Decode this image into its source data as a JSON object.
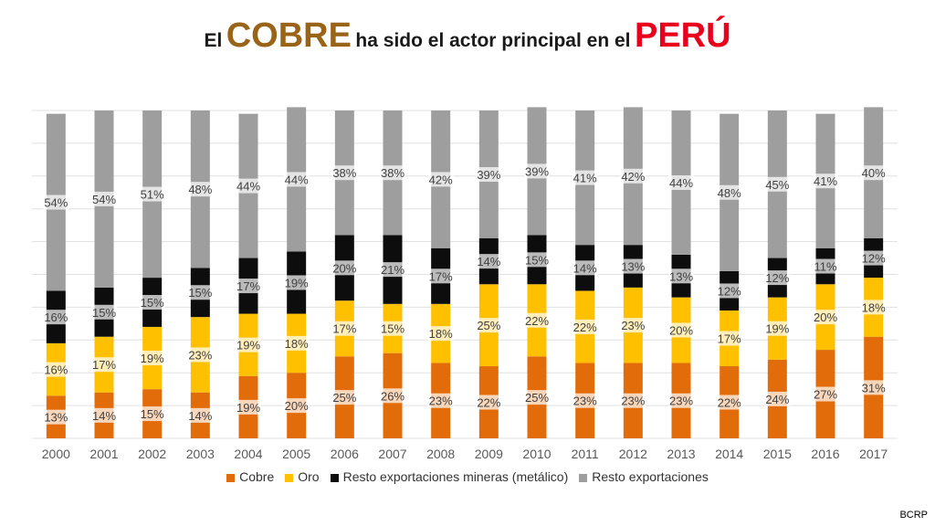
{
  "title": {
    "part1": "El",
    "part2": "COBRE",
    "part3": "ha sido el actor principal en el",
    "part4": "PERÚ"
  },
  "source": "BCRP",
  "chart_data": {
    "type": "bar",
    "stacked": true,
    "percent_stacked": true,
    "categories": [
      "2000",
      "2001",
      "2002",
      "2003",
      "2004",
      "2005",
      "2006",
      "2007",
      "2008",
      "2009",
      "2010",
      "2011",
      "2012",
      "2013",
      "2014",
      "2015",
      "2016",
      "2017"
    ],
    "series": [
      {
        "name": "Cobre",
        "color": "#e36c0a",
        "values": [
          13,
          14,
          15,
          14,
          19,
          20,
          25,
          26,
          23,
          22,
          25,
          23,
          23,
          23,
          22,
          24,
          27,
          31
        ]
      },
      {
        "name": "Oro",
        "color": "#ffc000",
        "values": [
          16,
          17,
          19,
          23,
          19,
          18,
          17,
          15,
          18,
          25,
          22,
          22,
          23,
          20,
          17,
          19,
          20,
          18
        ]
      },
      {
        "name": "Resto exportaciones mineras (metálico)",
        "color": "#0d0d0d",
        "values": [
          16,
          15,
          15,
          15,
          17,
          19,
          20,
          21,
          17,
          14,
          15,
          14,
          13,
          13,
          12,
          12,
          11,
          12
        ]
      },
      {
        "name": "Resto exportaciones",
        "color": "#9e9e9e",
        "values": [
          54,
          54,
          51,
          48,
          44,
          44,
          38,
          38,
          42,
          39,
          39,
          41,
          42,
          44,
          48,
          45,
          41,
          40
        ]
      }
    ],
    "ylim": [
      0,
      100
    ],
    "grid": true,
    "legend_position": "bottom",
    "data_labels": true
  }
}
